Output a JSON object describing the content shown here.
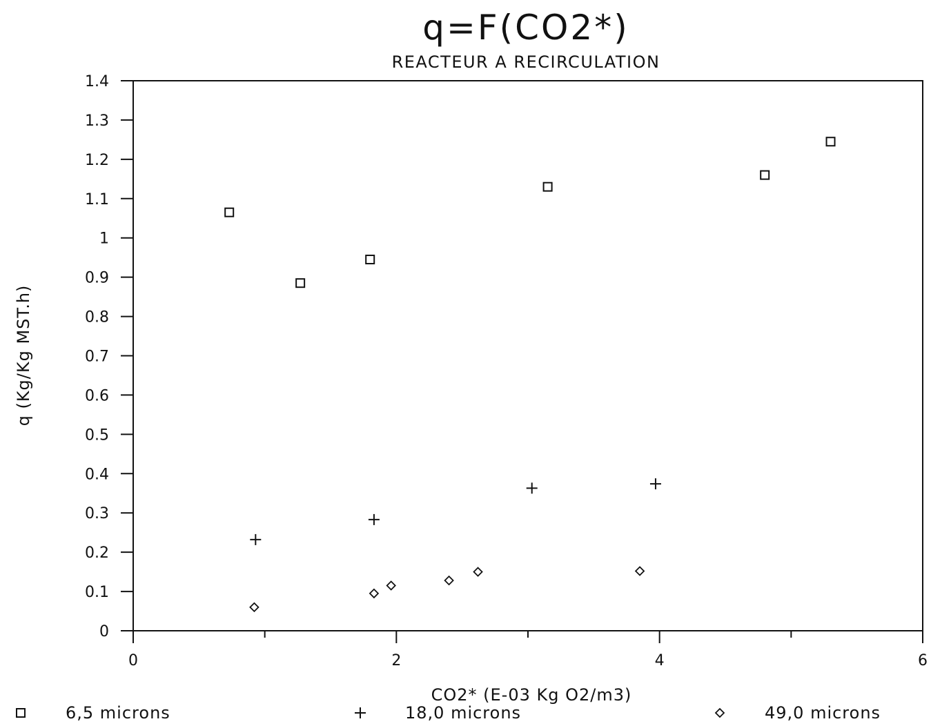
{
  "chart_data": {
    "type": "scatter",
    "title": "q=F(CO2*)",
    "subtitle": "REACTEUR A RECIRCULATION",
    "xlabel": "CO2* (E-03 Kg O2/m3)",
    "ylabel": "q (Kg/Kg MST.h)",
    "xlim": [
      0,
      6
    ],
    "ylim": [
      0,
      1.4
    ],
    "x_ticks": [
      0,
      2,
      4,
      6
    ],
    "x_minor_ticks": [
      1,
      3,
      5
    ],
    "x_tick_labels": [
      "0",
      "2",
      "4",
      "6"
    ],
    "y_ticks": [
      0,
      0.1,
      0.2,
      0.3,
      0.4,
      0.5,
      0.6,
      0.7,
      0.8,
      0.9,
      1,
      1.1,
      1.2,
      1.3,
      1.4
    ],
    "y_tick_labels": [
      "0",
      "0.1",
      "0.2",
      "0.3",
      "0.4",
      "0.5",
      "0.6",
      "0.7",
      "0.8",
      "0.9",
      "1",
      "1.1",
      "1.2",
      "1.3",
      "1.4"
    ],
    "grid": false,
    "legend_position": "bottom",
    "series": [
      {
        "name": "6,5 microns",
        "marker": "square",
        "x": [
          0.73,
          1.27,
          1.8,
          3.15,
          4.8,
          5.3
        ],
        "y": [
          1.065,
          0.885,
          0.945,
          1.13,
          1.16,
          1.245
        ]
      },
      {
        "name": "18,0 microns",
        "marker": "plus",
        "x": [
          0.93,
          1.83,
          3.03,
          3.97
        ],
        "y": [
          0.232,
          0.283,
          0.363,
          0.374
        ]
      },
      {
        "name": "49,0 microns",
        "marker": "diamond",
        "x": [
          0.92,
          1.83,
          1.96,
          2.4,
          2.62,
          3.85
        ],
        "y": [
          0.06,
          0.095,
          0.115,
          0.128,
          0.15,
          0.152
        ]
      }
    ]
  },
  "colors": {
    "ink": "#111111",
    "background": "#ffffff"
  }
}
